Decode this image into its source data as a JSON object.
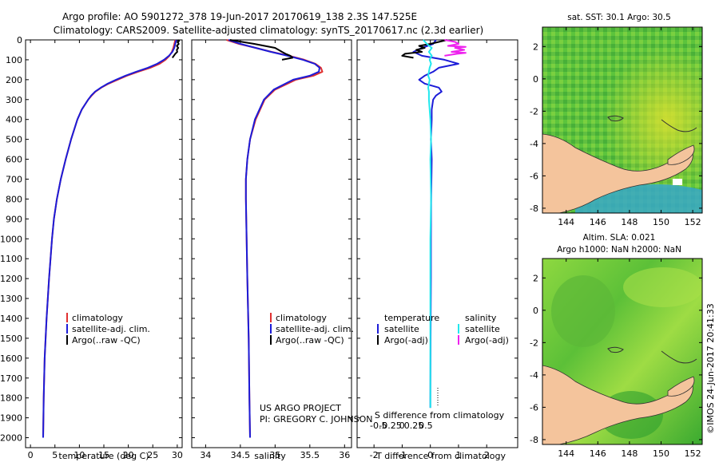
{
  "header": {
    "line1": "Argo profile: AO 5901272_378 19-Jun-2017 20170619_138 2.3S 147.525E",
    "line2": "Climatology: CARS2009. Satellite-adjusted climatology: synTS_20170617.nc (2.3d earlier)"
  },
  "credit": {
    "line1": "US ARGO PROJECT",
    "line2": "PI: GREGORY C. JOHNSON"
  },
  "stamp": "©IMOS 24-Jun-2017 20:41:33",
  "colors": {
    "climatology": "#e03030",
    "satellite": "#1c1cd8",
    "argo": "#000000",
    "sal_satellite": "#22e8ee",
    "sal_argo": "#ee22ee",
    "land": "#f4c49c",
    "axis": "#000000"
  },
  "chart_data": [
    {
      "id": "temperature",
      "type": "line",
      "xlabel": "temperature (deg C)",
      "ylabel": "",
      "xlim": [
        -1,
        31
      ],
      "ylim": [
        2050,
        0
      ],
      "xticks": [
        0,
        5,
        10,
        15,
        20,
        25,
        30
      ],
      "xticklabels": [
        "0",
        "5",
        "10",
        "15",
        "20",
        "25",
        "30"
      ],
      "yticks": [
        0,
        100,
        200,
        300,
        400,
        500,
        600,
        700,
        800,
        900,
        1000,
        1100,
        1200,
        1300,
        1400,
        1500,
        1600,
        1700,
        1800,
        1900,
        2000
      ],
      "yticklabels": [
        "0",
        "100",
        "200",
        "300",
        "400",
        "500",
        "600",
        "700",
        "800",
        "900",
        "1000",
        "1100",
        "1200",
        "1300",
        "1400",
        "1500",
        "1600",
        "1700",
        "1800",
        "1900",
        "2000"
      ],
      "legend": [
        "climatology",
        "satellite-adj. clim.",
        "Argo(..raw -QC)"
      ],
      "series": [
        {
          "name": "climatology",
          "color": "#e03030",
          "depth": [
            0,
            20,
            40,
            60,
            80,
            100,
            120,
            140,
            160,
            180,
            200,
            220,
            240,
            260,
            280,
            300,
            350,
            400,
            500,
            600,
            700,
            800,
            900,
            1000,
            1200,
            1400,
            1600,
            1800,
            2000
          ],
          "values": [
            29.6,
            29.4,
            29.2,
            28.9,
            28.4,
            27.6,
            26.4,
            24.5,
            22.0,
            19.7,
            17.8,
            16.0,
            14.5,
            13.3,
            12.5,
            11.8,
            10.5,
            9.6,
            8.3,
            7.2,
            6.2,
            5.4,
            4.8,
            4.4,
            3.8,
            3.3,
            2.9,
            2.7,
            2.6
          ]
        },
        {
          "name": "satellite-adj. clim.",
          "color": "#1c1cd8",
          "depth": [
            0,
            20,
            40,
            60,
            80,
            100,
            120,
            140,
            160,
            180,
            200,
            220,
            240,
            260,
            280,
            300,
            350,
            400,
            500,
            600,
            700,
            800,
            900,
            1000,
            1200,
            1400,
            1600,
            1800,
            2000
          ],
          "values": [
            29.8,
            29.6,
            29.4,
            29.0,
            28.3,
            27.3,
            25.9,
            24.0,
            21.6,
            19.4,
            17.5,
            15.8,
            14.4,
            13.2,
            12.4,
            11.8,
            10.5,
            9.6,
            8.3,
            7.2,
            6.2,
            5.4,
            4.8,
            4.4,
            3.8,
            3.3,
            2.9,
            2.7,
            2.6
          ]
        },
        {
          "name": "Argo(..raw -QC)",
          "color": "#000000",
          "depth": [
            0,
            5,
            10,
            20,
            30,
            40,
            50,
            60,
            70,
            80,
            90
          ],
          "values": [
            30.2,
            30.4,
            30.1,
            30.3,
            29.9,
            30.2,
            29.9,
            30.0,
            29.6,
            29.3,
            29.0
          ]
        }
      ]
    },
    {
      "id": "salinity",
      "type": "line",
      "xlabel": "salinity",
      "ylabel": "",
      "xlim": [
        33.8,
        36.1
      ],
      "ylim": [
        2050,
        0
      ],
      "xticks": [
        34,
        34.5,
        35,
        35.5,
        36
      ],
      "xticklabels": [
        "34",
        "34.5",
        "35",
        "35.5",
        "36"
      ],
      "legend": [
        "climatology",
        "satellite-adj. clim.",
        "Argo(..raw -QC)"
      ],
      "series": [
        {
          "name": "climatology",
          "color": "#e03030",
          "depth": [
            0,
            20,
            40,
            60,
            80,
            100,
            120,
            140,
            160,
            180,
            200,
            250,
            300,
            400,
            500,
            600,
            700,
            800,
            1000,
            1200,
            1500,
            1800,
            2000
          ],
          "values": [
            34.3,
            34.48,
            34.72,
            34.95,
            35.2,
            35.42,
            35.58,
            35.66,
            35.68,
            35.55,
            35.3,
            35.0,
            34.85,
            34.72,
            34.64,
            34.6,
            34.58,
            34.58,
            34.59,
            34.6,
            34.62,
            34.63,
            34.64
          ]
        },
        {
          "name": "satellite-adj. clim.",
          "color": "#1c1cd8",
          "depth": [
            0,
            20,
            40,
            60,
            80,
            100,
            120,
            140,
            160,
            180,
            200,
            250,
            300,
            400,
            500,
            600,
            700,
            800,
            1000,
            1200,
            1500,
            1800,
            2000
          ],
          "values": [
            34.33,
            34.5,
            34.72,
            34.94,
            35.18,
            35.4,
            35.57,
            35.64,
            35.63,
            35.5,
            35.26,
            34.98,
            34.84,
            34.71,
            34.64,
            34.6,
            34.58,
            34.58,
            34.59,
            34.6,
            34.62,
            34.63,
            34.64
          ]
        },
        {
          "name": "Argo(..raw -QC)",
          "color": "#000000",
          "depth": [
            0,
            20,
            40,
            50,
            60,
            70,
            80,
            90,
            100
          ],
          "values": [
            34.35,
            34.7,
            35.0,
            35.05,
            35.1,
            35.15,
            35.22,
            35.25,
            35.1
          ]
        }
      ]
    },
    {
      "id": "difference",
      "type": "line",
      "xlabel": "T difference from climatology",
      "xlabel2": "S difference from climatology",
      "xlim": [
        -2.6,
        3.1
      ],
      "ylim": [
        2050,
        0
      ],
      "xticks": [
        -2,
        -1,
        0,
        1,
        2
      ],
      "xticklabels": [
        "-2",
        "-1",
        "0",
        "1",
        "2"
      ],
      "xticks_s": [
        -0.5,
        -0.25,
        0,
        0.25,
        0.5
      ],
      "xticklabels_s": [
        "-0.5",
        "-0.25",
        "0",
        "0.25",
        "0.5"
      ],
      "legend": {
        "temp_title": "temperature",
        "sal_title": "salinity",
        "temp_items": [
          "satellite",
          "Argo(-adj)"
        ],
        "sal_items": [
          "satellite",
          "Argo(-adj)"
        ]
      },
      "series": [
        {
          "name": "T satellite",
          "color": "#1c1cd8",
          "depth": [
            0,
            20,
            40,
            60,
            80,
            100,
            120,
            140,
            160,
            180,
            200,
            220,
            240,
            260,
            280,
            300,
            350,
            400,
            500,
            600,
            800,
            1000,
            1200,
            1500,
            1800,
            1850
          ],
          "values": [
            0.2,
            0.1,
            -0.3,
            -0.6,
            -0.3,
            0.5,
            1.0,
            0.3,
            0.1,
            -0.2,
            -0.4,
            -0.2,
            0.3,
            0.4,
            0.2,
            0.1,
            0.05,
            0.05,
            0.02,
            0.05,
            0.03,
            0.02,
            0.02,
            0.01,
            0.0,
            0.0
          ]
        },
        {
          "name": "T Argo(-adj)",
          "color": "#000000",
          "depth": [
            0,
            10,
            20,
            30,
            40,
            50,
            60,
            70,
            80,
            90
          ],
          "values": [
            0.6,
            0.3,
            0.0,
            -0.4,
            -0.2,
            -0.5,
            -0.3,
            -0.9,
            -1.0,
            -0.6
          ]
        },
        {
          "name": "S satellite",
          "color": "#22e8ee",
          "depth": [
            0,
            20,
            40,
            60,
            80,
            100,
            120,
            140,
            160,
            180,
            200,
            220,
            240,
            260,
            280,
            300,
            350,
            400,
            500,
            600,
            800,
            1000,
            1200,
            1500,
            1800,
            1850
          ],
          "values": [
            -0.1,
            -0.05,
            0.02,
            -0.02,
            0.02,
            -0.01,
            0.01,
            -0.01,
            -0.02,
            -0.03,
            -0.01,
            -0.02,
            -0.03,
            -0.02,
            -0.02,
            -0.02,
            -0.01,
            0.0,
            0.01,
            0.0,
            0.01,
            0.0,
            0.0,
            0.0,
            0.0,
            0.0
          ]
        },
        {
          "name": "S Argo(-adj)",
          "color": "#ee22ee",
          "depth": [
            0,
            10,
            20,
            30,
            35,
            40,
            50,
            60,
            65,
            70,
            80
          ],
          "values": [
            0.2,
            0.35,
            0.4,
            0.25,
            0.5,
            0.35,
            0.48,
            0.3,
            0.5,
            0.38,
            0.2
          ]
        }
      ]
    },
    {
      "id": "sst_map",
      "type": "heatmap",
      "title": "sat. SST: 30.1  Argo: 30.5",
      "xticks": [
        144,
        146,
        148,
        150,
        152
      ],
      "xticklabels": [
        "144",
        "146",
        "148",
        "150",
        "152"
      ],
      "yticks": [
        2,
        0,
        -2,
        -4,
        -6,
        -8
      ],
      "yticklabels": [
        "2",
        "0",
        "-2",
        "-4",
        "-6",
        "-8"
      ],
      "xlim": [
        142.5,
        152.6
      ],
      "ylim": [
        -8.3,
        3.2
      ],
      "argo_lon": 147.525,
      "argo_lat": -2.3
    },
    {
      "id": "sla_map",
      "type": "heatmap",
      "title_line1": "Altim. SLA: 0.021",
      "title_line2": "Argo h1000: NaN h2000: NaN",
      "xticks": [
        144,
        146,
        148,
        150,
        152
      ],
      "xticklabels": [
        "144",
        "146",
        "148",
        "150",
        "152"
      ],
      "yticks": [
        2,
        0,
        -2,
        -4,
        -6,
        -8
      ],
      "yticklabels": [
        "2",
        "0",
        "-2",
        "-4",
        "-6",
        "-8"
      ],
      "xlim": [
        142.5,
        152.6
      ],
      "ylim": [
        -8.3,
        3.2
      ]
    }
  ]
}
